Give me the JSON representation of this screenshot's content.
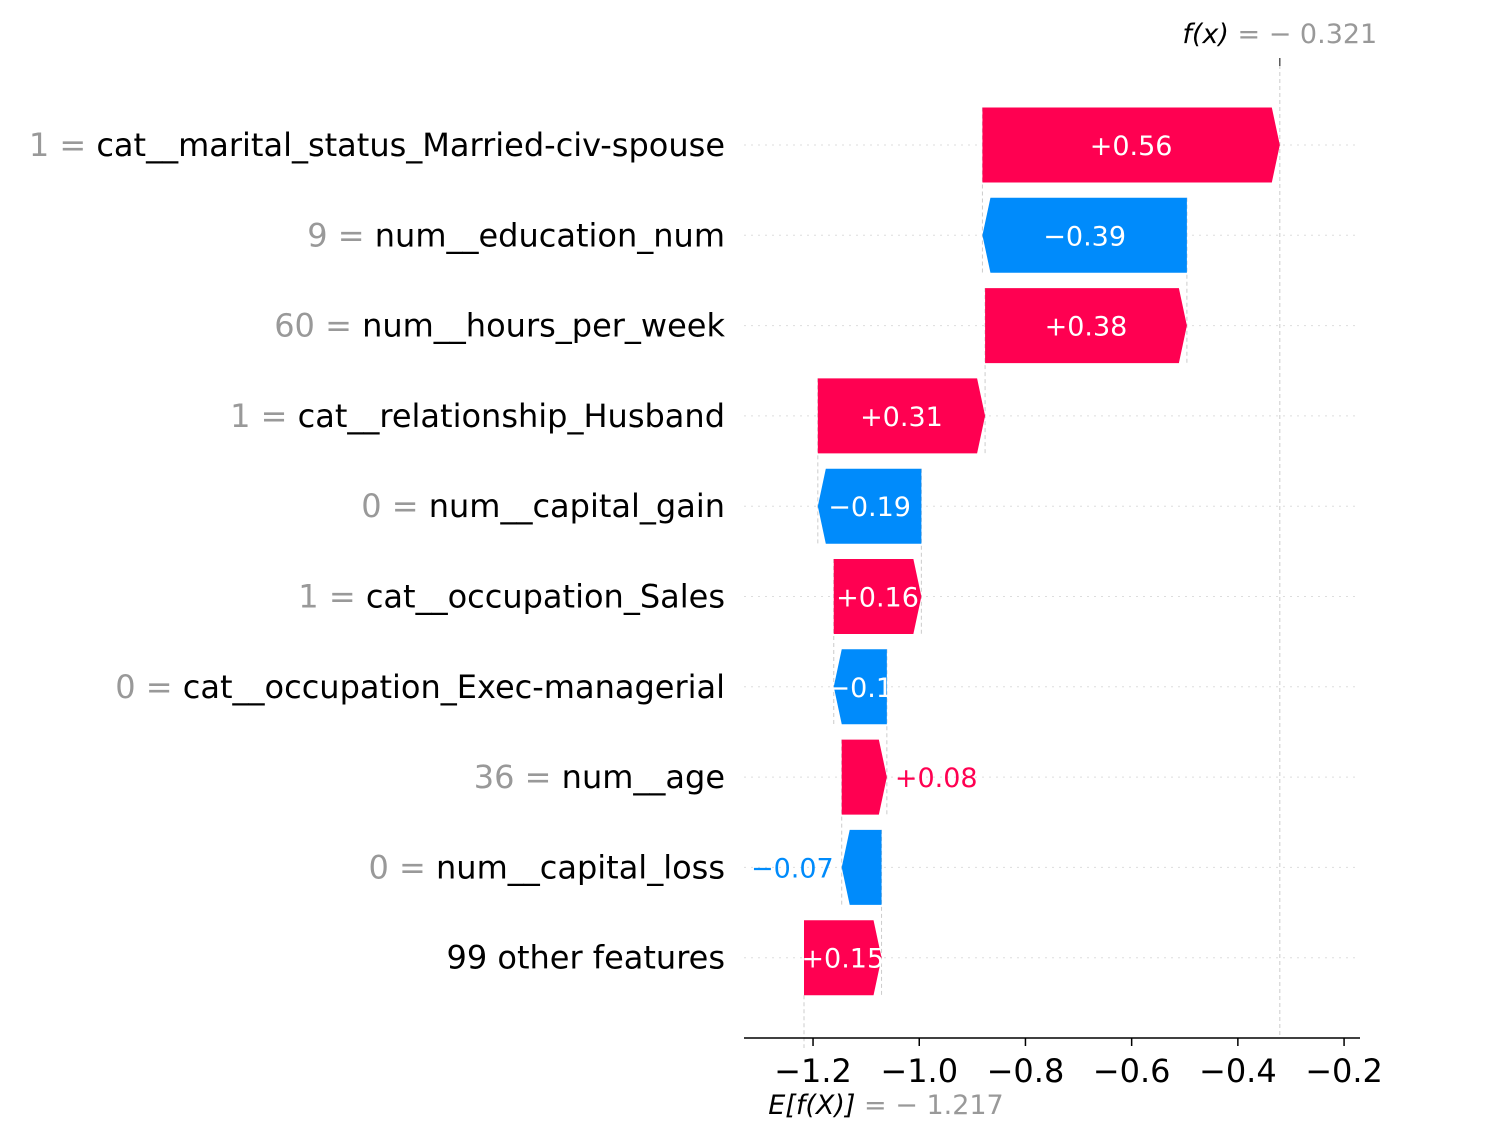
{
  "chart_data": {
    "type": "waterfall",
    "base_value": -1.217,
    "final_value": -0.321,
    "fx_label": "f(x)",
    "fx_value_text": "= − 0.321",
    "ex_label": "E[f(X)]",
    "ex_value_text": "= − 1.217",
    "xlim": [
      -1.33,
      -0.17
    ],
    "xticks": [
      -1.2,
      -1.0,
      -0.8,
      -0.6,
      -0.4,
      -0.2
    ],
    "xtick_labels": [
      "−1.2",
      "−1.0",
      "−0.8",
      "−0.6",
      "−0.4",
      "−0.2"
    ],
    "features": [
      {
        "value_text": "1 =",
        "name": "cat__marital_status_Married-civ-spouse",
        "contribution": 0.56,
        "label": "+0.56"
      },
      {
        "value_text": "9 =",
        "name": "num__education_num",
        "contribution": -0.385,
        "label": "−0.39"
      },
      {
        "value_text": "60 =",
        "name": "num__hours_per_week",
        "contribution": 0.38,
        "label": "+0.38"
      },
      {
        "value_text": "1 =",
        "name": "cat__relationship_Husband",
        "contribution": 0.315,
        "label": "+0.31"
      },
      {
        "value_text": "0 =",
        "name": "num__capital_gain",
        "contribution": -0.195,
        "label": "−0.19"
      },
      {
        "value_text": "1 =",
        "name": "cat__occupation_Sales",
        "contribution": 0.165,
        "label": "+0.16"
      },
      {
        "value_text": "0 =",
        "name": "cat__occupation_Exec-managerial",
        "contribution": -0.1,
        "label": "−0.1"
      },
      {
        "value_text": "36 =",
        "name": "num__age",
        "contribution": 0.085,
        "label": "+0.08"
      },
      {
        "value_text": "0 =",
        "name": "num__capital_loss",
        "contribution": -0.075,
        "label": "−0.07"
      },
      {
        "value_text": "",
        "name": "99 other features",
        "contribution": 0.146,
        "label": "+0.15"
      }
    ],
    "colors": {
      "positive": "#ff0051",
      "negative": "#008bfb",
      "muted": "#999999",
      "text": "#000000",
      "gridline": "#cccccc"
    }
  }
}
